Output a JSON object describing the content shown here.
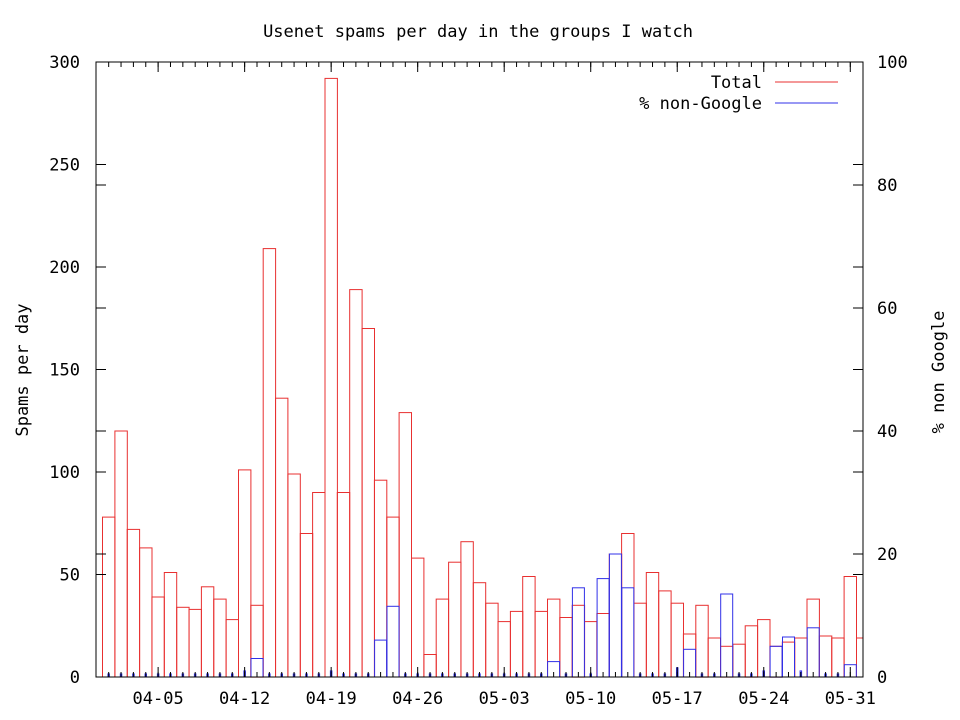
{
  "colors": {
    "total": "#e83030",
    "nongoogle": "#3030e8",
    "axis": "#000000",
    "background": "#ffffff"
  },
  "chart_data": {
    "type": "bar",
    "title": "Usenet spams per day in the groups I watch",
    "ylabel": "Spams per day",
    "y2label": "% non Google",
    "ylim": [
      0,
      300
    ],
    "y2lim": [
      0,
      100
    ],
    "yticks": [
      "0",
      "50",
      "100",
      "150",
      "200",
      "250",
      "300"
    ],
    "y2ticks": [
      "0",
      "20",
      "40",
      "60",
      "80",
      "100"
    ],
    "xticks": [
      "04-05",
      "04-12",
      "04-19",
      "04-26",
      "05-03",
      "05-10",
      "05-17",
      "05-24",
      "05-31"
    ],
    "legend_position": "top-right",
    "series": [
      {
        "name": "Total",
        "axis": "left",
        "values": [
          78,
          120,
          72,
          63,
          39,
          51,
          34,
          33,
          44,
          38,
          28,
          101,
          35,
          209,
          136,
          99,
          70,
          90,
          292,
          90,
          189,
          170,
          96,
          78,
          129,
          58,
          11,
          38,
          56,
          66,
          46,
          36,
          27,
          32,
          49,
          32,
          38,
          29,
          35,
          27,
          31,
          60,
          70,
          36,
          51,
          42,
          36,
          21,
          35,
          19,
          15,
          16,
          25,
          28,
          15,
          17,
          19,
          38,
          20,
          19,
          49,
          19
        ]
      },
      {
        "name": "% non-Google",
        "axis": "right",
        "values": [
          0.5,
          0.5,
          0.5,
          0.5,
          0.5,
          0.5,
          0.5,
          0.5,
          0.5,
          0.5,
          0.5,
          1,
          3,
          0.5,
          0.5,
          0.5,
          0.5,
          0.5,
          1,
          0.5,
          0.5,
          0.5,
          6,
          11.5,
          0.5,
          0.5,
          0.5,
          0.5,
          0.5,
          0.5,
          0.5,
          0.5,
          0.5,
          0.5,
          0.5,
          0.5,
          2.5,
          0.5,
          14.5,
          0.5,
          16,
          20,
          14.5,
          0.5,
          0.5,
          0.5,
          1.5,
          4.5,
          0.5,
          0.5,
          13.5,
          0.5,
          0.5,
          1,
          5,
          6.5,
          1,
          8,
          0.5,
          0.5,
          2,
          0.5
        ]
      }
    ]
  }
}
